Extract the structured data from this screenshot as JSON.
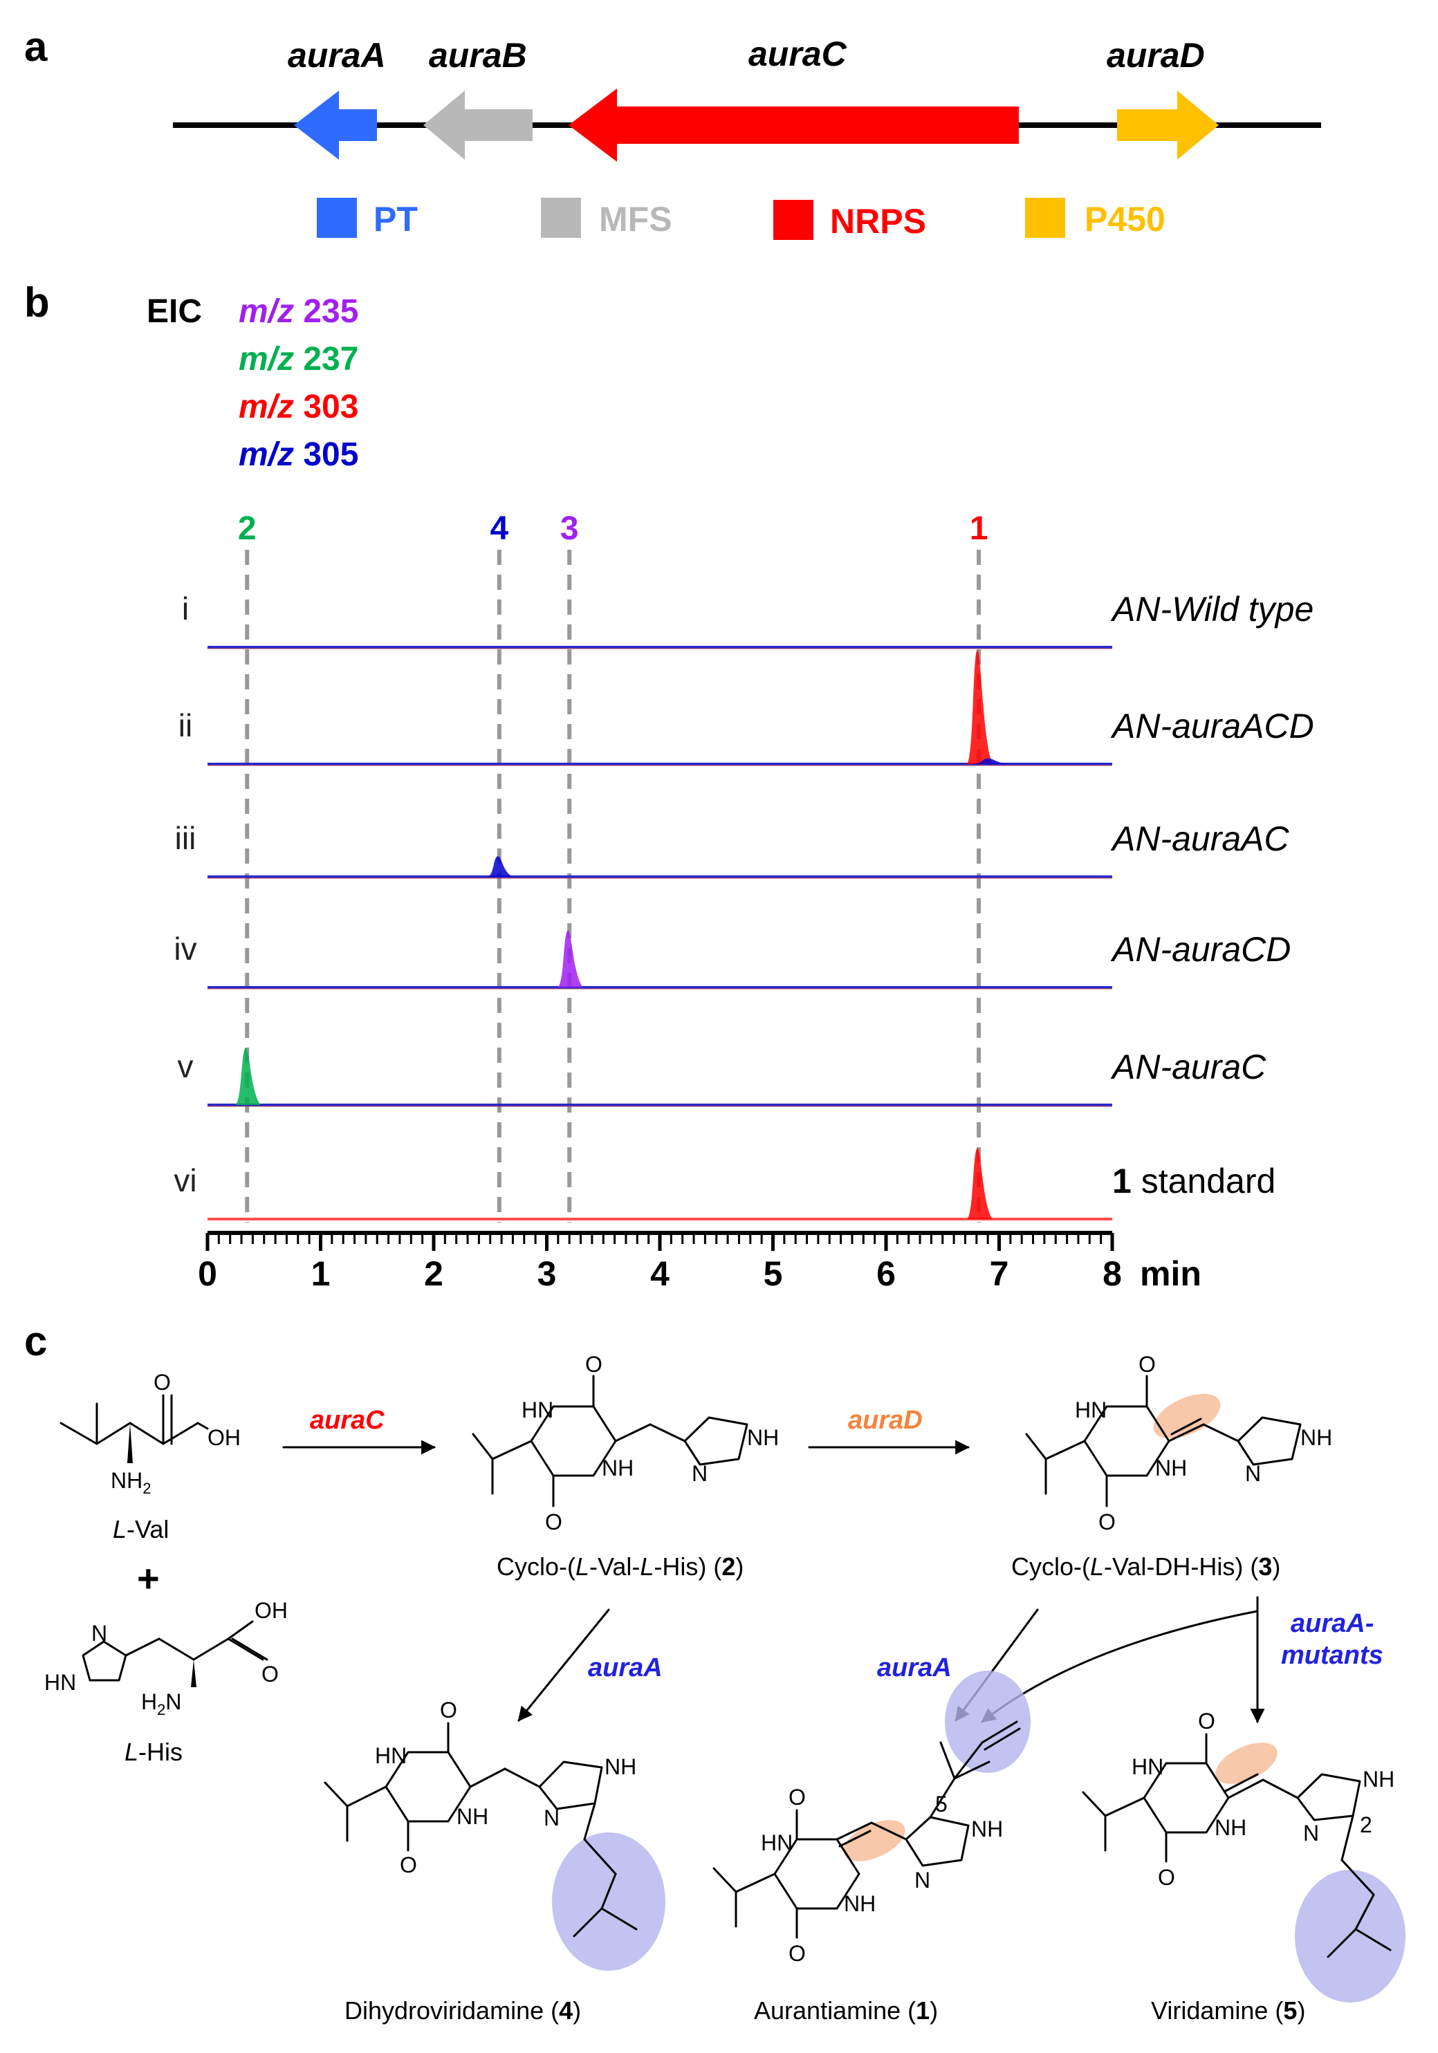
{
  "panels": {
    "a": "a",
    "b": "b",
    "c": "c"
  },
  "genes": [
    {
      "name": "auraA",
      "color": "#2f6bff",
      "role": "PT"
    },
    {
      "name": "auraB",
      "color": "#b8b8b8",
      "role": "MFS"
    },
    {
      "name": "auraC",
      "color": "#ff0000",
      "role": "NRPS"
    },
    {
      "name": "auraD",
      "color": "#ffc000",
      "role": "P450"
    }
  ],
  "eic": {
    "label": "EIC",
    "prefix": "m/z",
    "channels": [
      {
        "mz": "235",
        "color": "#a020f0"
      },
      {
        "mz": "237",
        "color": "#00b050"
      },
      {
        "mz": "303",
        "color": "#ff0000"
      },
      {
        "mz": "305",
        "color": "#0000cc"
      }
    ]
  },
  "chart_data": {
    "type": "line",
    "xlabel": "min",
    "xlim": [
      0,
      8
    ],
    "x_ticks": [
      "0",
      "1",
      "2",
      "3",
      "4",
      "5",
      "6",
      "7",
      "8"
    ],
    "reference_lines": [
      {
        "label": "2",
        "x": 0.35,
        "color": "#00b050"
      },
      {
        "label": "4",
        "x": 2.58,
        "color": "#0000cc"
      },
      {
        "label": "3",
        "x": 3.2,
        "color": "#a020f0"
      },
      {
        "label": "1",
        "x": 6.82,
        "color": "#ff0000"
      }
    ],
    "traces": [
      {
        "roman": "i",
        "strain": "AN-Wild type",
        "peaks": []
      },
      {
        "roman": "ii",
        "strain": "AN-auraACD",
        "peaks": [
          {
            "x": 6.82,
            "height": 1.0,
            "color": "#ff0000"
          },
          {
            "x": 6.92,
            "height": 0.05,
            "color": "#0000cc"
          }
        ]
      },
      {
        "roman": "iii",
        "strain": "AN-auraAC",
        "peaks": [
          {
            "x": 2.58,
            "height": 0.18,
            "color": "#0000cc"
          }
        ]
      },
      {
        "roman": "iv",
        "strain": "AN-auraCD",
        "peaks": [
          {
            "x": 3.2,
            "height": 0.5,
            "color": "#a020f0"
          }
        ]
      },
      {
        "roman": "v",
        "strain": "AN-auraC",
        "peaks": [
          {
            "x": 0.35,
            "height": 0.5,
            "color": "#00b050"
          }
        ]
      },
      {
        "roman": "vi",
        "strain_bold": "1",
        "strain": " standard",
        "peaks": [
          {
            "x": 6.82,
            "height": 0.62,
            "color": "#ff0000"
          }
        ]
      }
    ]
  },
  "scheme": {
    "val": {
      "pre": "L",
      "post": "-Val"
    },
    "his": {
      "pre": "L",
      "post": "-His"
    },
    "plus": "+",
    "enzymes": {
      "auraC": {
        "text": "auraC",
        "color": "#ff0000"
      },
      "auraD": {
        "text": "auraD",
        "color": "#f4843c"
      },
      "auraA1": {
        "text": "auraA",
        "color": "#2222dd"
      },
      "auraA2": {
        "text": "auraA",
        "color": "#2222dd"
      },
      "mutants1": {
        "text": "auraA-",
        "color": "#2222dd"
      },
      "mutants2": {
        "text": "mutants",
        "color": "#2222dd"
      }
    },
    "compounds": {
      "c2": {
        "a": "Cyclo-(",
        "b": "L",
        "c": "-Val-",
        "d": "L",
        "e": "-His) (",
        "f": "2",
        "g": ")"
      },
      "c3": {
        "a": "Cyclo-(",
        "b": "L",
        "c": "-Val-DH-His) (",
        "f": "3",
        "g": ")"
      },
      "c4": {
        "a": "Dihydroviridamine (",
        "f": "4",
        "g": ")"
      },
      "c1": {
        "a": "Aurantiamine (",
        "f": "1",
        "g": ")"
      },
      "c5": {
        "a": "Viridamine (",
        "f": "5",
        "g": ")"
      }
    },
    "atoms": {
      "O": "O",
      "OH": "OH",
      "NH2": "NH",
      "NH2sub": "2",
      "H2N": "H",
      "H2Nsub": "2",
      "H2Nend": "N",
      "HN": "HN",
      "NH": "NH",
      "N": "N",
      "pos2": "2",
      "pos5": "5"
    }
  }
}
